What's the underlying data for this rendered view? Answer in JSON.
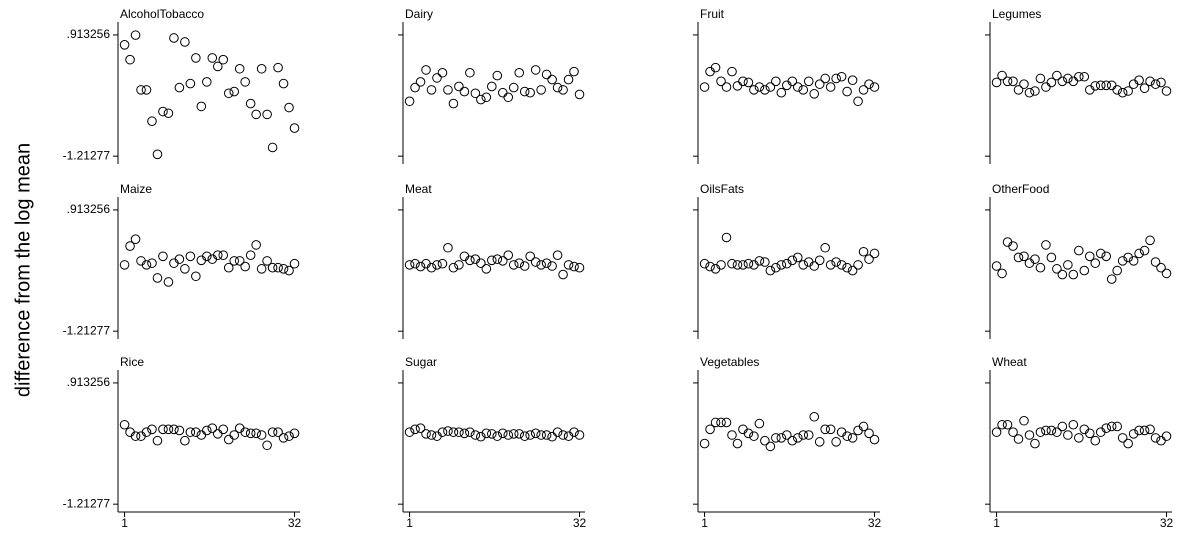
{
  "chart_data": {
    "type": "scatter",
    "ylabel": "difference from the log mean",
    "x": [
      1,
      2,
      3,
      4,
      5,
      6,
      7,
      8,
      9,
      10,
      11,
      12,
      13,
      14,
      15,
      16,
      17,
      18,
      19,
      20,
      21,
      22,
      23,
      24,
      25,
      26,
      27,
      28,
      29,
      30,
      31,
      32
    ],
    "xlim": [
      -0.2,
      33
    ],
    "xticks": [
      1,
      32
    ],
    "ylim": [
      -1.35,
      1.14
    ],
    "yticks": [
      {
        "value": 0.913256,
        "label": ".913256"
      },
      -1.21277
    ],
    "marker_color": "#000000",
    "panels": [
      {
        "title": "AlcoholTobacco",
        "values": [
          0.74,
          0.48,
          0.91,
          -0.05,
          -0.05,
          -0.6,
          -1.18,
          -0.43,
          -0.46,
          0.86,
          -0.01,
          0.79,
          0.06,
          0.51,
          -0.34,
          0.09,
          0.51,
          0.36,
          0.48,
          -0.11,
          -0.08,
          0.32,
          0.09,
          -0.29,
          -0.48,
          0.32,
          -0.48,
          -1.06,
          0.34,
          0.06,
          -0.36,
          -0.72
        ]
      },
      {
        "title": "Dairy",
        "values": [
          -0.25,
          -0.01,
          0.09,
          0.3,
          -0.05,
          0.16,
          0.25,
          -0.05,
          -0.29,
          0.01,
          -0.08,
          0.25,
          -0.11,
          -0.22,
          -0.18,
          0.01,
          0.2,
          -0.1,
          -0.18,
          -0.01,
          0.25,
          -0.08,
          -0.1,
          0.3,
          -0.05,
          0.22,
          0.13,
          -0.01,
          -0.05,
          0.13,
          0.27,
          -0.13
        ]
      },
      {
        "title": "Fruit",
        "values": [
          0.0,
          0.27,
          0.34,
          0.1,
          0.0,
          0.27,
          0.02,
          0.1,
          0.08,
          -0.05,
          0.0,
          -0.05,
          0.0,
          0.1,
          -0.1,
          0.03,
          0.1,
          0.0,
          -0.05,
          0.1,
          -0.12,
          0.05,
          0.15,
          0.0,
          0.15,
          0.18,
          -0.08,
          0.12,
          -0.25,
          -0.05,
          0.05,
          0.0
        ]
      },
      {
        "title": "Legumes",
        "values": [
          0.08,
          0.2,
          0.1,
          0.1,
          -0.05,
          0.05,
          -0.1,
          -0.07,
          0.15,
          0.0,
          0.08,
          0.2,
          0.1,
          0.15,
          0.1,
          0.18,
          0.18,
          -0.05,
          0.02,
          0.03,
          0.03,
          0.03,
          -0.05,
          -0.1,
          -0.07,
          0.05,
          0.12,
          -0.02,
          0.1,
          0.05,
          0.08,
          -0.07
        ]
      },
      {
        "title": "Maize",
        "values": [
          -0.05,
          0.28,
          0.4,
          0.02,
          -0.05,
          -0.02,
          -0.28,
          0.1,
          -0.35,
          -0.02,
          0.05,
          -0.12,
          0.1,
          -0.25,
          0.03,
          0.1,
          0.05,
          0.12,
          0.12,
          -0.1,
          0.02,
          0.02,
          -0.08,
          0.12,
          0.3,
          -0.12,
          0.02,
          -0.1,
          -0.1,
          -0.12,
          -0.15,
          -0.03
        ]
      },
      {
        "title": "Meat",
        "values": [
          -0.05,
          -0.03,
          -0.08,
          -0.03,
          -0.1,
          -0.05,
          -0.03,
          0.25,
          -0.1,
          -0.05,
          0.1,
          0.03,
          0.05,
          -0.02,
          -0.12,
          0.03,
          0.05,
          0.02,
          0.12,
          -0.05,
          -0.02,
          -0.07,
          0.1,
          0.0,
          -0.05,
          -0.02,
          -0.07,
          0.12,
          -0.22,
          -0.05,
          -0.08,
          -0.1
        ]
      },
      {
        "title": "OilsFats",
        "values": [
          -0.03,
          -0.08,
          -0.12,
          -0.05,
          0.43,
          -0.03,
          -0.05,
          -0.05,
          -0.03,
          -0.05,
          0.02,
          0.0,
          -0.15,
          -0.1,
          -0.05,
          -0.03,
          0.03,
          0.08,
          -0.05,
          0.0,
          -0.07,
          0.03,
          0.25,
          -0.05,
          0.0,
          -0.05,
          -0.1,
          -0.15,
          -0.05,
          0.18,
          0.05,
          0.15
        ]
      },
      {
        "title": "OtherFood",
        "values": [
          -0.07,
          -0.2,
          0.35,
          0.28,
          0.08,
          0.1,
          -0.02,
          0.05,
          -0.1,
          0.3,
          0.08,
          -0.12,
          -0.22,
          -0.05,
          -0.22,
          0.2,
          -0.15,
          0.1,
          -0.02,
          0.15,
          0.1,
          -0.3,
          -0.15,
          0.02,
          0.08,
          0.02,
          0.15,
          0.2,
          0.38,
          0.0,
          -0.1,
          -0.2
        ]
      },
      {
        "title": "Rice",
        "values": [
          0.18,
          0.05,
          -0.02,
          -0.02,
          0.05,
          0.1,
          -0.1,
          0.1,
          0.1,
          0.1,
          0.08,
          -0.1,
          0.05,
          0.05,
          0.0,
          0.08,
          0.12,
          0.02,
          0.1,
          -0.08,
          0.0,
          0.12,
          0.05,
          0.03,
          0.03,
          0.0,
          -0.18,
          0.05,
          0.05,
          -0.05,
          -0.02,
          0.03
        ]
      },
      {
        "title": "Sugar",
        "values": [
          0.05,
          0.1,
          0.12,
          0.02,
          0.0,
          -0.02,
          0.05,
          0.07,
          0.05,
          0.05,
          0.03,
          0.05,
          0.0,
          -0.03,
          0.03,
          0.02,
          -0.02,
          0.03,
          0.0,
          0.02,
          0.02,
          -0.02,
          0.0,
          0.03,
          0.0,
          0.0,
          -0.03,
          0.05,
          0.0,
          -0.02,
          0.05,
          0.0
        ]
      },
      {
        "title": "Vegetables",
        "values": [
          -0.15,
          0.1,
          0.22,
          0.22,
          0.22,
          0.0,
          -0.15,
          0.1,
          0.03,
          -0.02,
          0.2,
          -0.1,
          -0.2,
          -0.05,
          -0.05,
          0.0,
          -0.1,
          -0.05,
          0.0,
          0.0,
          0.32,
          -0.12,
          0.1,
          0.1,
          -0.12,
          0.05,
          -0.02,
          -0.05,
          0.08,
          0.15,
          0.03,
          -0.08
        ]
      },
      {
        "title": "Wheat",
        "values": [
          0.05,
          0.18,
          0.18,
          0.05,
          -0.07,
          0.25,
          0.0,
          -0.15,
          0.05,
          0.08,
          0.08,
          0.05,
          0.15,
          0.0,
          0.18,
          -0.05,
          0.1,
          0.03,
          -0.1,
          0.05,
          0.12,
          0.15,
          0.15,
          -0.05,
          -0.15,
          0.02,
          0.08,
          0.08,
          0.1,
          -0.05,
          -0.1,
          -0.02
        ]
      }
    ]
  }
}
